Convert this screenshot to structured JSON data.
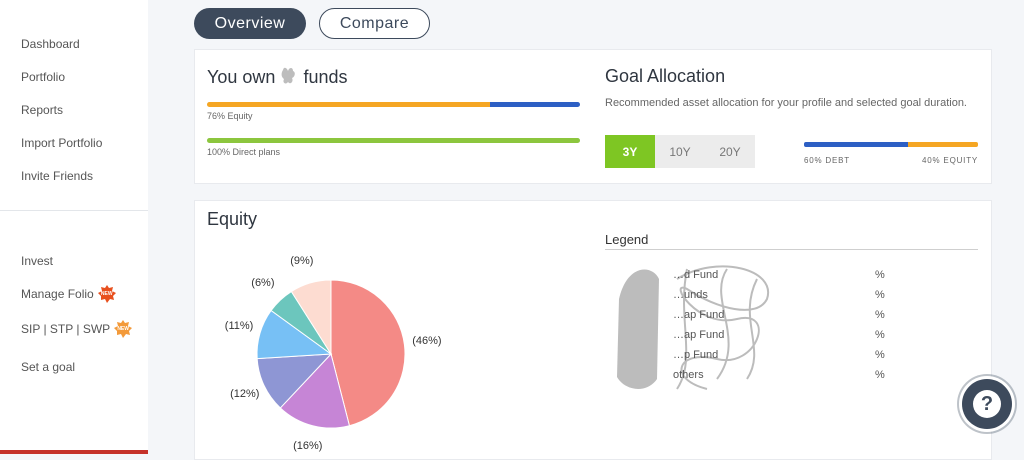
{
  "sidebar": {
    "items": [
      {
        "label": "Dashboard"
      },
      {
        "label": "Portfolio"
      },
      {
        "label": "Reports"
      },
      {
        "label": "Import Portfolio"
      },
      {
        "label": "Invite Friends"
      },
      {
        "label": "Invest"
      },
      {
        "label": "Manage Folio",
        "badge": "NEW"
      },
      {
        "label": "SIP | STP | SWP",
        "badge": "NEW"
      },
      {
        "label": "Set a goal"
      }
    ]
  },
  "tabs": [
    {
      "label": "Overview",
      "active": true
    },
    {
      "label": "Compare",
      "active": false
    }
  ],
  "summary": {
    "title_prefix": "You own",
    "title_suffix": "funds",
    "equity_percent": 76,
    "equity_label": "76% Equity",
    "direct_percent": 100,
    "direct_label": "100% Direct plans"
  },
  "goal": {
    "title": "Goal Allocation",
    "description": "Recommended asset allocation for your profile and selected goal duration.",
    "durations": [
      {
        "label": "3Y",
        "active": true
      },
      {
        "label": "10Y",
        "active": false
      },
      {
        "label": "20Y",
        "active": false
      }
    ],
    "debt_percent": 60,
    "equity_percent": 40,
    "debt_label": "60% DEBT",
    "equity_label": "40% EQUITY"
  },
  "equity": {
    "title": "Equity",
    "legend_title": "Legend",
    "legend": [
      {
        "name": "…d Fund",
        "pct": "%"
      },
      {
        "name": "…unds",
        "pct": "%"
      },
      {
        "name": "…ap Fund",
        "pct": "%"
      },
      {
        "name": "…ap Fund",
        "pct": "%"
      },
      {
        "name": "…p Fund",
        "pct": "%"
      },
      {
        "name": "others",
        "pct": "%"
      }
    ]
  },
  "chart_data": {
    "type": "pie",
    "values": [
      46,
      16,
      12,
      11,
      6,
      9
    ],
    "labels": [
      "(46%)",
      "(16%)",
      "(12%)",
      "(11%)",
      "(6%)",
      "(9%)"
    ],
    "colors": [
      "#f48a86",
      "#c685d6",
      "#8e96d4",
      "#77c0f5",
      "#6cc6bd",
      "#fddcd1"
    ]
  },
  "help": {
    "label": "?"
  },
  "colors": {
    "accent": "#3d4a5c",
    "green": "#7ec623",
    "orange": "#f5a623",
    "blue": "#2d5fc4",
    "lime": "#8cc63e"
  }
}
